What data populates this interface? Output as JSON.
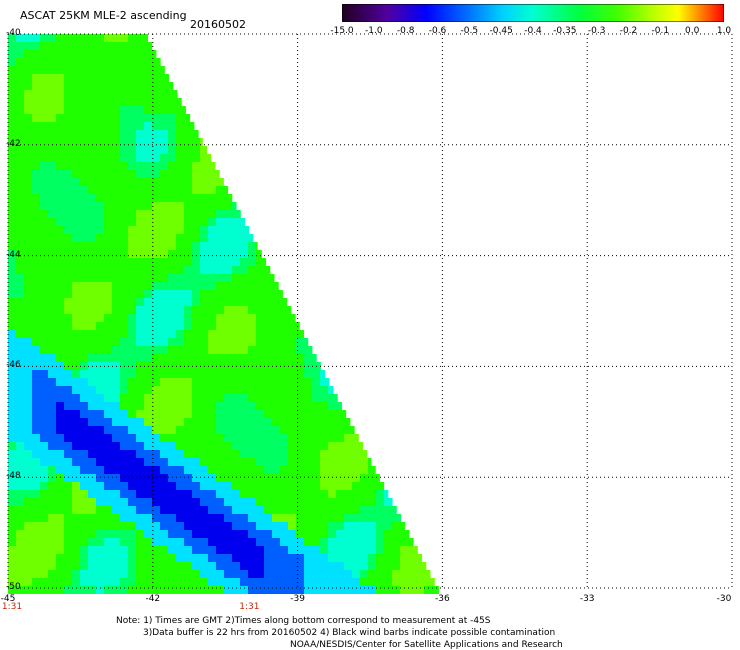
{
  "header": {
    "title": "ASCAT 25KM MLE-2 ascending",
    "date": "20160502"
  },
  "colorbar": {
    "labels": [
      "-15.0",
      "-1.0",
      "-0.8",
      "-0.6",
      "-0.5",
      "-0.45",
      "-0.4",
      "-0.35",
      "-0.3",
      "-0.2",
      "-0.1",
      "0.0",
      "1.0"
    ],
    "colors": [
      "#200020",
      "#400060",
      "#6000c0",
      "#0000ff",
      "#0060ff",
      "#00b0ff",
      "#00ffff",
      "#00ff90",
      "#00ff00",
      "#80ff00",
      "#ffff00",
      "#ff8000",
      "#ff0000"
    ]
  },
  "map": {
    "lat_labels": [
      "-40",
      "-42",
      "-44",
      "-46",
      "-48",
      "-50"
    ],
    "lon_labels": [
      "-45",
      "-42",
      "-39",
      "-36",
      "-33",
      "-30"
    ],
    "time_labels": [
      {
        "text": "1:31",
        "lon": "-45"
      },
      {
        "text": "1:31",
        "lon": "-40"
      }
    ]
  },
  "notes": {
    "line1": "Note: 1) Times are GMT 2)Times along bottom correspond to measurement at -45S",
    "line2": "3)Data buffer is 22 hrs from 20160502 4) Black wind barbs indicate possible contamination",
    "line3": "NOAA/NESDIS/Center for Satellite Applications and Research"
  }
}
